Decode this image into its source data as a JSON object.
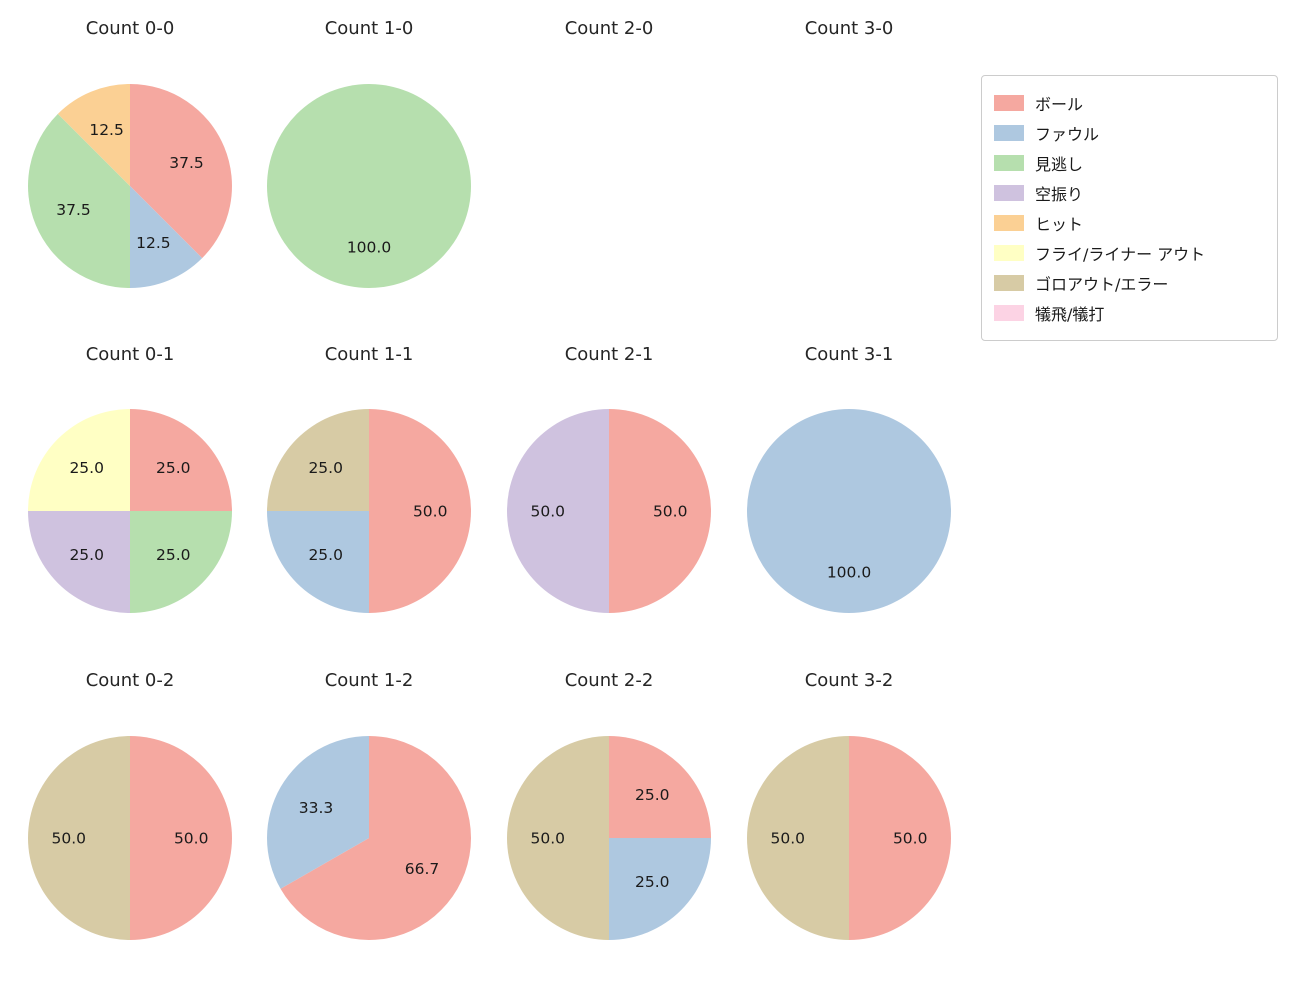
{
  "figure": {
    "background": "#ffffff",
    "text_color": "#262626"
  },
  "legend": {
    "items": [
      {
        "label": "ボール",
        "color": "#f5a8a0"
      },
      {
        "label": "ファウル",
        "color": "#aec8e0"
      },
      {
        "label": "見逃し",
        "color": "#b6dfae"
      },
      {
        "label": "空振り",
        "color": "#cfc2df"
      },
      {
        "label": "ヒット",
        "color": "#fbd094"
      },
      {
        "label": "フライ/ライナー アウト",
        "color": "#ffffc4"
      },
      {
        "label": "ゴロアウト/エラー",
        "color": "#d7cba5"
      },
      {
        "label": "犠飛/犠打",
        "color": "#fcd3e4"
      }
    ]
  },
  "chart_data": [
    {
      "type": "pie",
      "title": "Count 0-0",
      "grid": {
        "row": 0,
        "col": 0
      },
      "start_angle_deg": 0,
      "direction": "clockwise",
      "slices": [
        {
          "label": "ボール",
          "value": 37.5,
          "pct": "37.5"
        },
        {
          "label": "ファウル",
          "value": 12.5,
          "pct": "12.5"
        },
        {
          "label": "見逃し",
          "value": 37.5,
          "pct": "37.5"
        },
        {
          "label": "ヒット",
          "value": 12.5,
          "pct": "12.5"
        }
      ]
    },
    {
      "type": "pie",
      "title": "Count 1-0",
      "grid": {
        "row": 0,
        "col": 1
      },
      "start_angle_deg": 0,
      "direction": "clockwise",
      "slices": [
        {
          "label": "見逃し",
          "value": 100.0,
          "pct": "100.0"
        }
      ]
    },
    {
      "type": "pie",
      "title": "Count 2-0",
      "grid": {
        "row": 0,
        "col": 2
      },
      "start_angle_deg": 0,
      "direction": "clockwise",
      "slices": []
    },
    {
      "type": "pie",
      "title": "Count 3-0",
      "grid": {
        "row": 0,
        "col": 3
      },
      "start_angle_deg": 0,
      "direction": "clockwise",
      "slices": []
    },
    {
      "type": "pie",
      "title": "Count 0-1",
      "grid": {
        "row": 1,
        "col": 0
      },
      "start_angle_deg": 0,
      "direction": "clockwise",
      "slices": [
        {
          "label": "ボール",
          "value": 25.0,
          "pct": "25.0"
        },
        {
          "label": "見逃し",
          "value": 25.0,
          "pct": "25.0"
        },
        {
          "label": "空振り",
          "value": 25.0,
          "pct": "25.0"
        },
        {
          "label": "フライ/ライナー アウト",
          "value": 25.0,
          "pct": "25.0"
        }
      ]
    },
    {
      "type": "pie",
      "title": "Count 1-1",
      "grid": {
        "row": 1,
        "col": 1
      },
      "start_angle_deg": 0,
      "direction": "clockwise",
      "slices": [
        {
          "label": "ボール",
          "value": 50.0,
          "pct": "50.0"
        },
        {
          "label": "ファウル",
          "value": 25.0,
          "pct": "25.0"
        },
        {
          "label": "ゴロアウト/エラー",
          "value": 25.0,
          "pct": "25.0"
        }
      ]
    },
    {
      "type": "pie",
      "title": "Count 2-1",
      "grid": {
        "row": 1,
        "col": 2
      },
      "start_angle_deg": 0,
      "direction": "clockwise",
      "slices": [
        {
          "label": "ボール",
          "value": 50.0,
          "pct": "50.0"
        },
        {
          "label": "空振り",
          "value": 50.0,
          "pct": "50.0"
        }
      ]
    },
    {
      "type": "pie",
      "title": "Count 3-1",
      "grid": {
        "row": 1,
        "col": 3
      },
      "start_angle_deg": 0,
      "direction": "clockwise",
      "slices": [
        {
          "label": "ファウル",
          "value": 100.0,
          "pct": "100.0"
        }
      ]
    },
    {
      "type": "pie",
      "title": "Count 0-2",
      "grid": {
        "row": 2,
        "col": 0
      },
      "start_angle_deg": 0,
      "direction": "clockwise",
      "slices": [
        {
          "label": "ボール",
          "value": 50.0,
          "pct": "50.0"
        },
        {
          "label": "ゴロアウト/エラー",
          "value": 50.0,
          "pct": "50.0"
        }
      ]
    },
    {
      "type": "pie",
      "title": "Count 1-2",
      "grid": {
        "row": 2,
        "col": 1
      },
      "start_angle_deg": 0,
      "direction": "clockwise",
      "slices": [
        {
          "label": "ボール",
          "value": 66.7,
          "pct": "66.7"
        },
        {
          "label": "ファウル",
          "value": 33.3,
          "pct": "33.3"
        }
      ]
    },
    {
      "type": "pie",
      "title": "Count 2-2",
      "grid": {
        "row": 2,
        "col": 2
      },
      "start_angle_deg": 0,
      "direction": "clockwise",
      "slices": [
        {
          "label": "ボール",
          "value": 25.0,
          "pct": "25.0"
        },
        {
          "label": "ファウル",
          "value": 25.0,
          "pct": "25.0"
        },
        {
          "label": "ゴロアウト/エラー",
          "value": 50.0,
          "pct": "50.0"
        }
      ]
    },
    {
      "type": "pie",
      "title": "Count 3-2",
      "grid": {
        "row": 2,
        "col": 3
      },
      "start_angle_deg": 0,
      "direction": "clockwise",
      "slices": [
        {
          "label": "ボール",
          "value": 50.0,
          "pct": "50.0"
        },
        {
          "label": "ゴロアウト/エラー",
          "value": 50.0,
          "pct": "50.0"
        }
      ]
    }
  ]
}
